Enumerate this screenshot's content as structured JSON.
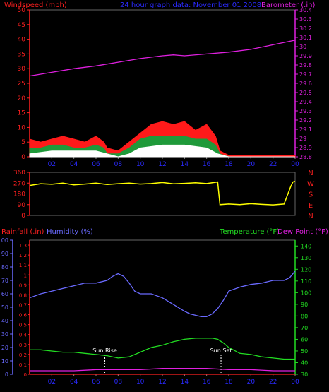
{
  "chart_data": [
    {
      "panel": "wind-baro",
      "type": "line",
      "titles": {
        "left": "Windspeed (mph)",
        "center": "24 hour graph data: November 01 2008",
        "right": "Barometer (.in)"
      },
      "colors": {
        "left": "#ff2020",
        "center": "#2a2aff",
        "right": "#e020e0",
        "axis_left": "#ff2020",
        "axis_right": "#e020e0",
        "gust": "#ff1a1a",
        "avg": "#1f9a3a",
        "min": "#ffffff",
        "baro": "#e020e0"
      },
      "x_tick_labels": [
        "02",
        "04",
        "06",
        "08",
        "10",
        "12",
        "14",
        "16",
        "18",
        "20",
        "22",
        "00"
      ],
      "y_left": {
        "ticks": [
          0,
          5,
          10,
          15,
          20,
          25,
          30,
          35,
          40,
          45,
          50
        ],
        "range": [
          0,
          50
        ]
      },
      "y_right": {
        "ticks": [
          "28.8",
          "28.9",
          "29",
          "29.1",
          "29.2",
          "29.3",
          "29.4",
          "29.5",
          "29.6",
          "29.7",
          "29.8",
          "29.9",
          "30",
          "30.1",
          "30.2",
          "30.3",
          "30.4"
        ],
        "range": [
          28.8,
          30.4
        ]
      },
      "series": [
        {
          "key": "baro",
          "x": [
            0,
            2,
            4,
            6,
            8,
            10,
            12,
            13,
            14,
            16,
            18,
            20,
            22,
            24
          ],
          "y": [
            29.68,
            29.72,
            29.76,
            29.79,
            29.83,
            29.87,
            29.9,
            29.91,
            29.9,
            29.92,
            29.94,
            29.97,
            30.02,
            30.07
          ]
        },
        {
          "key": "gust",
          "x": [
            0,
            1,
            2,
            3,
            4,
            5,
            6,
            6.7,
            7,
            8,
            9,
            10,
            11,
            12,
            13,
            14,
            15,
            16,
            16.8,
            17.2,
            18,
            19,
            20,
            22,
            24
          ],
          "y": [
            6,
            5,
            6,
            7,
            6,
            5,
            7,
            5,
            3,
            2,
            5,
            8,
            11,
            12,
            11,
            12,
            9,
            11,
            7,
            2,
            0.5,
            0.5,
            0.5,
            0.5,
            0.5
          ]
        },
        {
          "key": "avg",
          "x": [
            0,
            1,
            2,
            3,
            4,
            5,
            6,
            6.7,
            7,
            8,
            9,
            10,
            11,
            12,
            13,
            14,
            15,
            16,
            16.8,
            17.2,
            18,
            24
          ],
          "y": [
            3,
            3,
            4,
            4,
            3,
            3,
            4,
            3,
            1,
            1,
            3,
            6,
            7,
            7,
            7,
            7,
            6,
            6,
            4,
            1,
            0,
            0
          ]
        },
        {
          "key": "min",
          "x": [
            0,
            2,
            4,
            6,
            7,
            8,
            9,
            10,
            12,
            14,
            16,
            17,
            18,
            24
          ],
          "y": [
            1,
            2,
            2,
            2,
            1,
            0,
            1,
            3,
            4,
            4,
            3,
            1,
            0,
            0
          ]
        }
      ]
    },
    {
      "panel": "wind-direction",
      "type": "line",
      "y_left": {
        "ticks": [
          0,
          90,
          180,
          270,
          360
        ],
        "range": [
          0,
          360
        ]
      },
      "compass_labels": [
        "N",
        "W",
        "S",
        "E",
        "N"
      ],
      "colors": {
        "line": "#ffff00",
        "axis": "#ff2020",
        "compass": "#ff2020"
      },
      "series": [
        {
          "key": "direction",
          "x": [
            0,
            1,
            2,
            3,
            4,
            5,
            6,
            7,
            8,
            9,
            10,
            11,
            12,
            13,
            14,
            15,
            16,
            17,
            17.2,
            18,
            19,
            20,
            21,
            22,
            23,
            23.6,
            23.8,
            24
          ],
          "y": [
            250,
            265,
            260,
            270,
            255,
            262,
            270,
            258,
            265,
            270,
            262,
            266,
            275,
            264,
            268,
            273,
            266,
            280,
            90,
            95,
            90,
            98,
            92,
            88,
            95,
            240,
            280,
            285
          ]
        }
      ]
    },
    {
      "panel": "rain-humidity-temp",
      "type": "line",
      "titles": {
        "left1": "Rainfall (.in)",
        "left2": "Humidity (%)",
        "right1": "Temperature (°F)",
        "right2": "Dew Point (°F)"
      },
      "colors": {
        "rain": "#ff2020",
        "humidity": "#6a6aff",
        "temp": "#22dd22",
        "dew": "#e020e0",
        "axis_left": "#6a6aff",
        "axis_right": "#22dd22",
        "rain_axis": "#ff2020"
      },
      "x_tick_labels": [
        "02",
        "04",
        "06",
        "08",
        "10",
        "12",
        "14",
        "16",
        "18",
        "20",
        "22",
        "00"
      ],
      "y_humidity": {
        "ticks": [
          0,
          10,
          20,
          30,
          40,
          50,
          60,
          70,
          80,
          90,
          100
        ],
        "range": [
          0,
          100
        ]
      },
      "y_rain": {
        "ticks": [
          "0",
          "0.1",
          "0.2",
          "0.3",
          "0.4",
          "0.5",
          "0.6",
          "0.7",
          "0.8",
          "0.9",
          "1",
          "1.1",
          "1.2",
          "1.3"
        ],
        "range": [
          0,
          1.35
        ]
      },
      "y_temp": {
        "ticks": [
          30,
          40,
          50,
          60,
          70,
          80,
          90,
          100,
          110,
          120,
          130,
          140
        ],
        "range": [
          30,
          145
        ]
      },
      "annotations": [
        {
          "label": "Sun Rise",
          "x": 6.8
        },
        {
          "label": "Sun Set",
          "x": 17.3
        }
      ],
      "series": [
        {
          "key": "humidity",
          "x": [
            0,
            1,
            2,
            3,
            4,
            5,
            6,
            7,
            7.5,
            8,
            8.5,
            9,
            9.5,
            10,
            11,
            12,
            13,
            14,
            14.5,
            15,
            15.5,
            16,
            16.5,
            17,
            17.5,
            18,
            19,
            20,
            21,
            22,
            23,
            23.5,
            24
          ],
          "y": [
            57,
            60,
            62,
            64,
            66,
            68,
            68,
            70,
            73,
            75,
            73,
            68,
            62,
            60,
            60,
            57,
            52,
            47,
            45,
            44,
            43,
            43,
            45,
            49,
            55,
            62,
            65,
            67,
            68,
            70,
            70,
            72,
            77
          ]
        },
        {
          "key": "temp",
          "x": [
            0,
            1,
            2,
            3,
            4,
            5,
            6,
            7,
            8,
            9,
            10,
            11,
            12,
            13,
            14,
            15,
            16,
            16.5,
            17,
            17.5,
            18,
            19,
            20,
            21,
            22,
            23,
            24
          ],
          "y": [
            51,
            51,
            50,
            49,
            49,
            48,
            47,
            46,
            44,
            45,
            49,
            53,
            55,
            58,
            60,
            61,
            61,
            61,
            60,
            57,
            53,
            48,
            47,
            45,
            44,
            43,
            43
          ]
        },
        {
          "key": "dew",
          "x": [
            0,
            2,
            4,
            6,
            8,
            10,
            12,
            14,
            16,
            18,
            20,
            22,
            24
          ],
          "y": [
            33,
            33,
            33,
            34,
            34,
            34,
            35,
            35,
            35,
            34,
            34,
            33,
            33
          ]
        },
        {
          "key": "rain",
          "x": [
            0,
            24
          ],
          "y": [
            0,
            0
          ]
        }
      ]
    }
  ]
}
